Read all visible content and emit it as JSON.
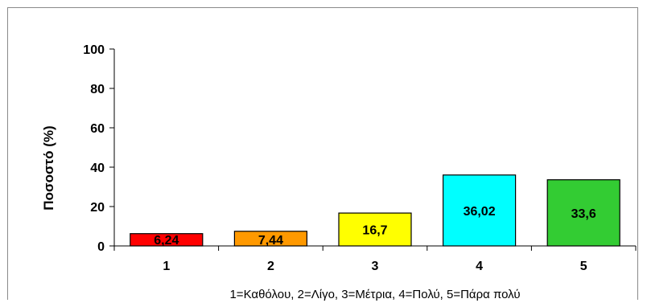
{
  "chart_data": {
    "type": "bar",
    "categories": [
      "1",
      "2",
      "3",
      "4",
      "5"
    ],
    "values": [
      6.24,
      7.44,
      16.7,
      36.02,
      33.6
    ],
    "data_labels": [
      "6,24",
      "7,44",
      "16,7",
      "36,02",
      "33,6"
    ],
    "colors": [
      "#ff0000",
      "#ff9900",
      "#ffff00",
      "#00ffff",
      "#33cc33"
    ],
    "title": "",
    "xlabel": "1=Καθόλου, 2=Λίγο, 3=Μέτρια, 4=Πολύ, 5=Πάρα πολύ",
    "ylabel": "Ποσοστό (%)",
    "ylim": [
      0,
      100
    ],
    "yticks": [
      "0",
      "20",
      "40",
      "60",
      "80",
      "100"
    ],
    "grid": false,
    "legend": "none"
  }
}
